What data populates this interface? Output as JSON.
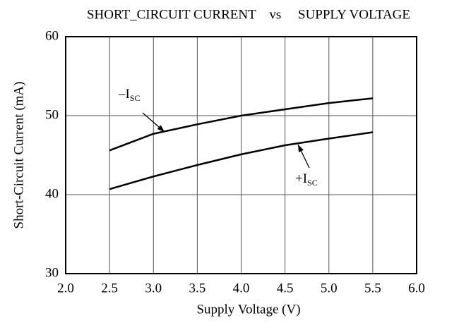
{
  "chart_data": {
    "type": "line",
    "title": "SHORT_CIRCUIT CURRENT    vs     SUPPLY VOLTAGE",
    "x_label": "Supply Voltage (V)",
    "y_label": "Short-Circuit Current  (mA)",
    "x": [
      2.5,
      3.0,
      3.5,
      4.0,
      4.5,
      5.0,
      5.5
    ],
    "series": [
      {
        "name": "–I",
        "subscript": "SC",
        "color": "#000000",
        "values": [
          45.6,
          47.7,
          48.9,
          50.0,
          50.8,
          51.6,
          52.2
        ]
      },
      {
        "name": "+I",
        "subscript": "SC",
        "color": "#000000",
        "values": [
          40.7,
          42.3,
          43.75,
          45.1,
          46.25,
          47.1,
          47.9
        ]
      }
    ],
    "xlim": [
      2.0,
      6.0
    ],
    "xticks": [
      {
        "value": 2.0,
        "label": "2.0"
      },
      {
        "value": 2.5,
        "label": "2.5"
      },
      {
        "value": 3.0,
        "label": "3.0"
      },
      {
        "value": 3.5,
        "label": "3.5"
      },
      {
        "value": 4.0,
        "label": "4.0"
      },
      {
        "value": 4.5,
        "label": "4.5"
      },
      {
        "value": 5.0,
        "label": "5.0"
      },
      {
        "value": 5.5,
        "label": "5.5"
      },
      {
        "value": 6.0,
        "label": "6.0"
      }
    ],
    "ylim": [
      30,
      60
    ],
    "yticks": [
      30,
      40,
      50,
      60
    ],
    "grid": true
  }
}
